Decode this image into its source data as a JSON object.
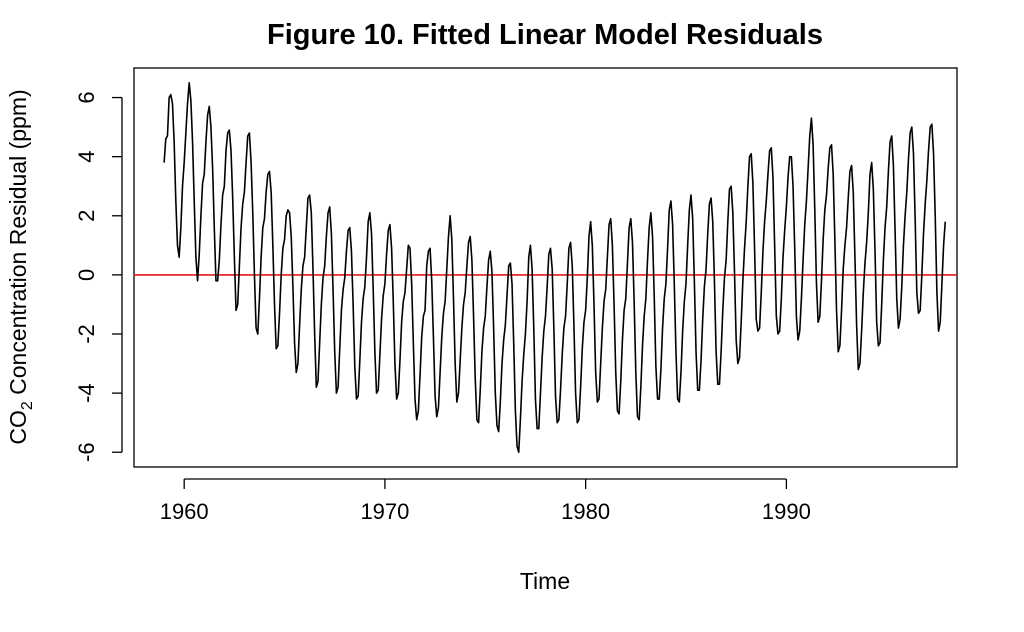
{
  "chart_data": {
    "type": "line",
    "title": "Figure 10. Fitted Linear Model Residuals",
    "xlabel": "Time",
    "ylabel_prefix": "CO",
    "ylabel_subscript": "2",
    "ylabel_suffix": " Concentration Residual (ppm)",
    "xlim": [
      1957.5,
      1998.5
    ],
    "ylim": [
      -6.5,
      7.0
    ],
    "xticks": [
      1960,
      1970,
      1980,
      1990
    ],
    "xtick_labels": [
      "1960",
      "1970",
      "1980",
      "1990"
    ],
    "yticks": [
      -6,
      -4,
      -2,
      0,
      2,
      4,
      6
    ],
    "ytick_labels": [
      "-6",
      "-4",
      "-2",
      "0",
      "2",
      "4",
      "6"
    ],
    "grid": false,
    "reference_line": {
      "y": 0,
      "color": "#e31a1c"
    },
    "series": [
      {
        "color": "#000000",
        "x_start": 1959.0,
        "x_step": 0.08333,
        "values": [
          3.8,
          4.6,
          4.7,
          6.0,
          6.1,
          5.8,
          4.5,
          2.5,
          1.0,
          0.6,
          1.6,
          3.0,
          3.8,
          4.8,
          5.8,
          6.5,
          5.9,
          4.5,
          2.5,
          0.6,
          -0.2,
          0.7,
          2.0,
          3.1,
          3.4,
          4.5,
          5.4,
          5.7,
          5.0,
          3.6,
          1.6,
          -0.2,
          -0.2,
          0.5,
          1.7,
          2.7,
          3.0,
          4.2,
          4.8,
          4.9,
          4.2,
          2.6,
          0.6,
          -1.2,
          -1.0,
          0.3,
          1.6,
          2.4,
          2.8,
          3.8,
          4.7,
          4.8,
          3.8,
          2.1,
          0.0,
          -1.8,
          -2.0,
          -0.8,
          0.6,
          1.6,
          1.9,
          2.8,
          3.4,
          3.5,
          2.8,
          1.0,
          -1.0,
          -2.5,
          -2.4,
          -1.3,
          0.0,
          0.9,
          1.2,
          2.0,
          2.2,
          2.1,
          1.3,
          -0.4,
          -2.3,
          -3.3,
          -3.0,
          -1.7,
          -0.5,
          0.3,
          0.6,
          1.6,
          2.6,
          2.7,
          2.1,
          0.2,
          -2.0,
          -3.8,
          -3.6,
          -2.3,
          -1.0,
          -0.1,
          0.3,
          1.3,
          2.1,
          2.3,
          1.4,
          -0.5,
          -2.6,
          -4.0,
          -3.8,
          -2.5,
          -1.2,
          -0.5,
          -0.1,
          0.8,
          1.5,
          1.6,
          0.8,
          -1.0,
          -3.1,
          -4.2,
          -4.1,
          -2.9,
          -1.6,
          -0.8,
          -0.4,
          0.6,
          1.8,
          2.1,
          1.4,
          -0.5,
          -2.6,
          -4.0,
          -3.9,
          -2.7,
          -1.5,
          -0.7,
          -0.3,
          0.7,
          1.5,
          1.7,
          0.9,
          -0.9,
          -3.0,
          -4.2,
          -4.0,
          -2.9,
          -1.6,
          -0.9,
          -0.6,
          0.2,
          1.0,
          0.9,
          -0.3,
          -2.3,
          -4.2,
          -4.9,
          -4.6,
          -3.4,
          -2.1,
          -1.4,
          -1.2,
          0.3,
          0.8,
          0.9,
          -0.2,
          -2.1,
          -4.1,
          -4.8,
          -4.5,
          -3.3,
          -2.1,
          -1.3,
          -0.9,
          0.2,
          1.3,
          2.0,
          1.2,
          -0.8,
          -3.0,
          -4.3,
          -4.0,
          -2.9,
          -1.8,
          -1.0,
          -0.6,
          0.3,
          1.1,
          1.3,
          0.5,
          -1.4,
          -3.5,
          -4.9,
          -5.0,
          -3.9,
          -2.6,
          -1.8,
          -1.4,
          -0.4,
          0.5,
          0.8,
          0.1,
          -1.8,
          -4.0,
          -5.1,
          -5.3,
          -4.3,
          -3.0,
          -2.2,
          -1.7,
          -0.7,
          0.3,
          0.4,
          -0.3,
          -2.3,
          -4.6,
          -5.8,
          -6.0,
          -4.9,
          -3.6,
          -2.7,
          -2.0,
          -0.9,
          0.6,
          1.0,
          0.2,
          -1.8,
          -4.2,
          -5.2,
          -5.2,
          -4.0,
          -2.8,
          -1.9,
          -1.4,
          -0.4,
          0.7,
          0.9,
          0.2,
          -1.8,
          -4.1,
          -5.0,
          -4.9,
          -3.9,
          -2.7,
          -1.8,
          -1.4,
          -0.3,
          0.9,
          1.1,
          0.3,
          -1.7,
          -4.0,
          -5.0,
          -4.9,
          -3.8,
          -2.5,
          -1.6,
          -1.2,
          -0.1,
          1.3,
          1.8,
          1.0,
          -1.0,
          -3.3,
          -4.3,
          -4.2,
          -3.0,
          -1.8,
          -0.9,
          -0.5,
          0.6,
          1.7,
          1.9,
          1.0,
          -1.0,
          -3.3,
          -4.6,
          -4.7,
          -3.6,
          -2.2,
          -1.2,
          -0.8,
          0.4,
          1.6,
          1.9,
          1.1,
          -0.9,
          -3.3,
          -4.8,
          -4.9,
          -3.8,
          -2.4,
          -1.4,
          -0.8,
          0.5,
          1.6,
          2.1,
          1.3,
          -0.7,
          -3.1,
          -4.2,
          -4.2,
          -3.2,
          -1.8,
          -0.8,
          -0.3,
          0.9,
          2.2,
          2.5,
          1.7,
          -0.3,
          -2.6,
          -4.2,
          -4.3,
          -3.3,
          -1.9,
          -0.9,
          -0.3,
          1.0,
          2.2,
          2.7,
          1.9,
          -0.2,
          -2.6,
          -3.9,
          -3.9,
          -2.9,
          -1.5,
          -0.4,
          0.2,
          1.4,
          2.4,
          2.6,
          1.8,
          -0.2,
          -2.6,
          -3.7,
          -3.7,
          -2.6,
          -1.2,
          -0.1,
          0.5,
          1.8,
          2.9,
          3.0,
          2.1,
          0.1,
          -2.2,
          -3.0,
          -2.8,
          -1.6,
          -0.2,
          0.9,
          1.8,
          3.0,
          4.0,
          4.1,
          3.1,
          0.9,
          -1.5,
          -1.9,
          -1.8,
          -0.6,
          0.8,
          1.8,
          2.5,
          3.4,
          4.2,
          4.3,
          3.3,
          1.0,
          -1.4,
          -2.0,
          -1.9,
          -0.8,
          0.6,
          1.5,
          2.3,
          3.3,
          4.0,
          4.0,
          3.0,
          0.9,
          -1.4,
          -2.2,
          -1.9,
          -0.8,
          0.5,
          1.7,
          2.5,
          3.6,
          4.7,
          5.3,
          4.4,
          2.2,
          -0.3,
          -1.6,
          -1.4,
          -0.2,
          1.2,
          2.2,
          2.7,
          3.6,
          4.3,
          4.4,
          3.4,
          1.2,
          -1.2,
          -2.6,
          -2.4,
          -1.2,
          0.2,
          1.0,
          1.6,
          2.6,
          3.5,
          3.7,
          2.8,
          0.6,
          -1.7,
          -3.2,
          -3.0,
          -1.9,
          -0.6,
          0.4,
          1.1,
          2.1,
          3.4,
          3.8,
          2.9,
          0.8,
          -1.6,
          -2.4,
          -2.3,
          -1.0,
          0.5,
          1.6,
          2.3,
          3.5,
          4.5,
          4.7,
          3.7,
          1.5,
          -0.8,
          -1.8,
          -1.5,
          -0.4,
          1.0,
          2.0,
          2.8,
          3.9,
          4.8,
          5.0,
          4.1,
          1.9,
          -0.6,
          -1.3,
          -1.2,
          0.0,
          1.4,
          2.4,
          3.2,
          4.2,
          5.0,
          5.1,
          4.1,
          2.0,
          -0.6,
          -1.9,
          -1.6,
          -0.3,
          1.0,
          1.8
        ]
      }
    ]
  }
}
